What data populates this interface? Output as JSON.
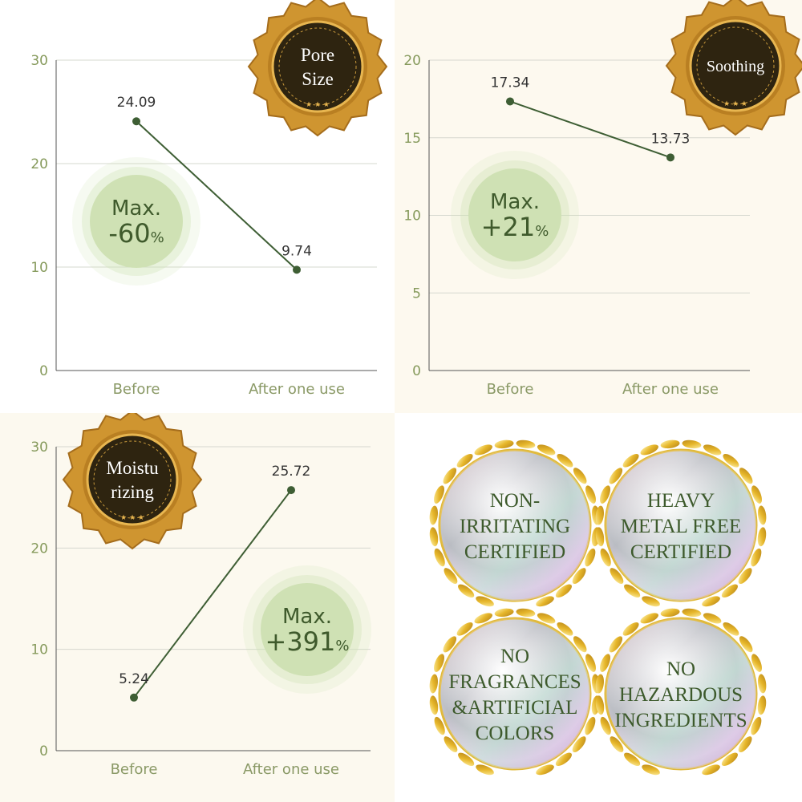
{
  "colors": {
    "line": "#3e5e34",
    "grid": "#d6d8cf",
    "axis_text": "#8a9966",
    "tick_text": "#869a5c",
    "highlight_fill": "#cfe1b4",
    "highlight_text": "#3f5a2c",
    "seal_gold": "#cf9530",
    "seal_dark": "#2e2410"
  },
  "chart_data": [
    {
      "type": "line",
      "title": "",
      "xlabel": "",
      "ylabel": "",
      "categories": [
        "Before",
        "After one use"
      ],
      "series": [
        {
          "values": [
            24.09,
            9.74
          ]
        }
      ],
      "data_labels": [
        "24.09",
        "9.74"
      ],
      "ylim": [
        0,
        30
      ],
      "yticks": [
        "0",
        "10",
        "20",
        "30"
      ],
      "grid": true,
      "badge": {
        "line1": "Pore",
        "line2": "Size"
      },
      "highlight": {
        "line1": "Max.",
        "value": "-60",
        "unit": "%"
      }
    },
    {
      "type": "line",
      "title": "",
      "xlabel": "",
      "ylabel": "",
      "categories": [
        "Before",
        "After one use"
      ],
      "series": [
        {
          "values": [
            17.34,
            13.73
          ]
        }
      ],
      "data_labels": [
        "17.34",
        "13.73"
      ],
      "ylim": [
        0,
        20
      ],
      "yticks": [
        "0",
        "5",
        "10",
        "15",
        "20"
      ],
      "grid": true,
      "badge": {
        "line1": "Soothing",
        "line2": ""
      },
      "highlight": {
        "line1": "Max.",
        "value": "+21",
        "unit": "%"
      }
    },
    {
      "type": "line",
      "title": "",
      "xlabel": "",
      "ylabel": "",
      "categories": [
        "Before",
        "After one use"
      ],
      "series": [
        {
          "values": [
            5.24,
            25.72
          ]
        }
      ],
      "data_labels": [
        "5.24",
        "25.72"
      ],
      "ylim": [
        0,
        30
      ],
      "yticks": [
        "0",
        "10",
        "20",
        "30"
      ],
      "grid": true,
      "badge": {
        "line1": "Moistu",
        "line2": "rizing"
      },
      "highlight": {
        "line1": "Max.",
        "value": "+391",
        "unit": "%"
      }
    }
  ],
  "certifications": [
    {
      "lines": [
        "NON-",
        "IRRITATING",
        "CERTIFIED"
      ]
    },
    {
      "lines": [
        "HEAVY",
        "METAL FREE",
        "CERTIFIED"
      ]
    },
    {
      "lines": [
        "NO",
        "FRAGRANCES",
        "&ARTIFICIAL",
        "COLORS"
      ]
    },
    {
      "lines": [
        "NO",
        "HAZARDOUS",
        "INGREDIENTS"
      ]
    }
  ]
}
